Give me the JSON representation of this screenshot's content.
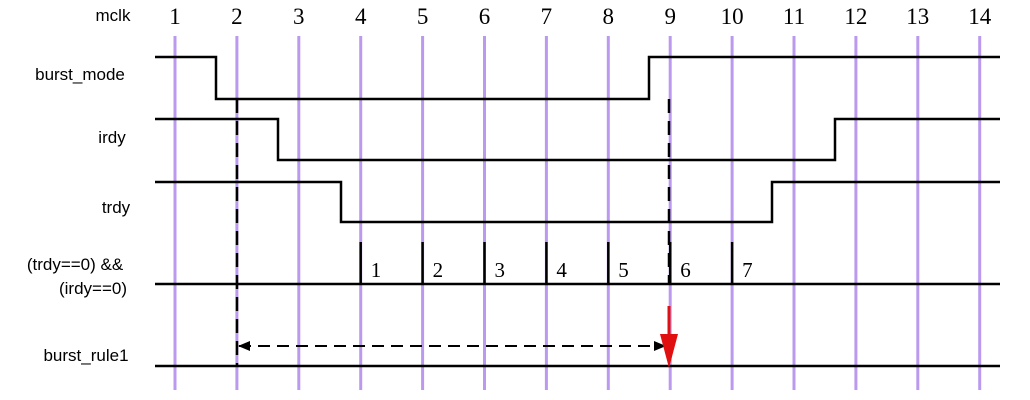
{
  "header_label": "mclk",
  "clock_cycles": [
    "1",
    "2",
    "3",
    "4",
    "5",
    "6",
    "7",
    "8",
    "9",
    "10",
    "11",
    "12",
    "13",
    "14"
  ],
  "signals": [
    {
      "id": "burst_mode",
      "label": "burst_mode",
      "falls_at_cycle": 2,
      "rises_at_cycle": 9
    },
    {
      "id": "irdy",
      "label": "irdy",
      "falls_at_cycle": 3,
      "rises_at_cycle": 12
    },
    {
      "id": "trdy",
      "label": "trdy",
      "falls_at_cycle": 4,
      "rises_at_cycle": 11
    },
    {
      "id": "condition",
      "label_line1": "(trdy==0) &&",
      "label_line2": "(irdy==0)"
    },
    {
      "id": "burst_rule1",
      "label": "burst_rule1"
    }
  ],
  "condition_counts": [
    "1",
    "2",
    "3",
    "4",
    "5",
    "6",
    "7"
  ],
  "condition_tick_cycles": [
    4,
    5,
    6,
    7,
    8,
    9,
    10
  ],
  "burst_rule1": {
    "arrow_from_cycle": 2,
    "arrow_to_cycle": 9
  },
  "colors": {
    "clock_line": "#bb99ee",
    "signal": "#000000",
    "assertion": "#e01010"
  }
}
